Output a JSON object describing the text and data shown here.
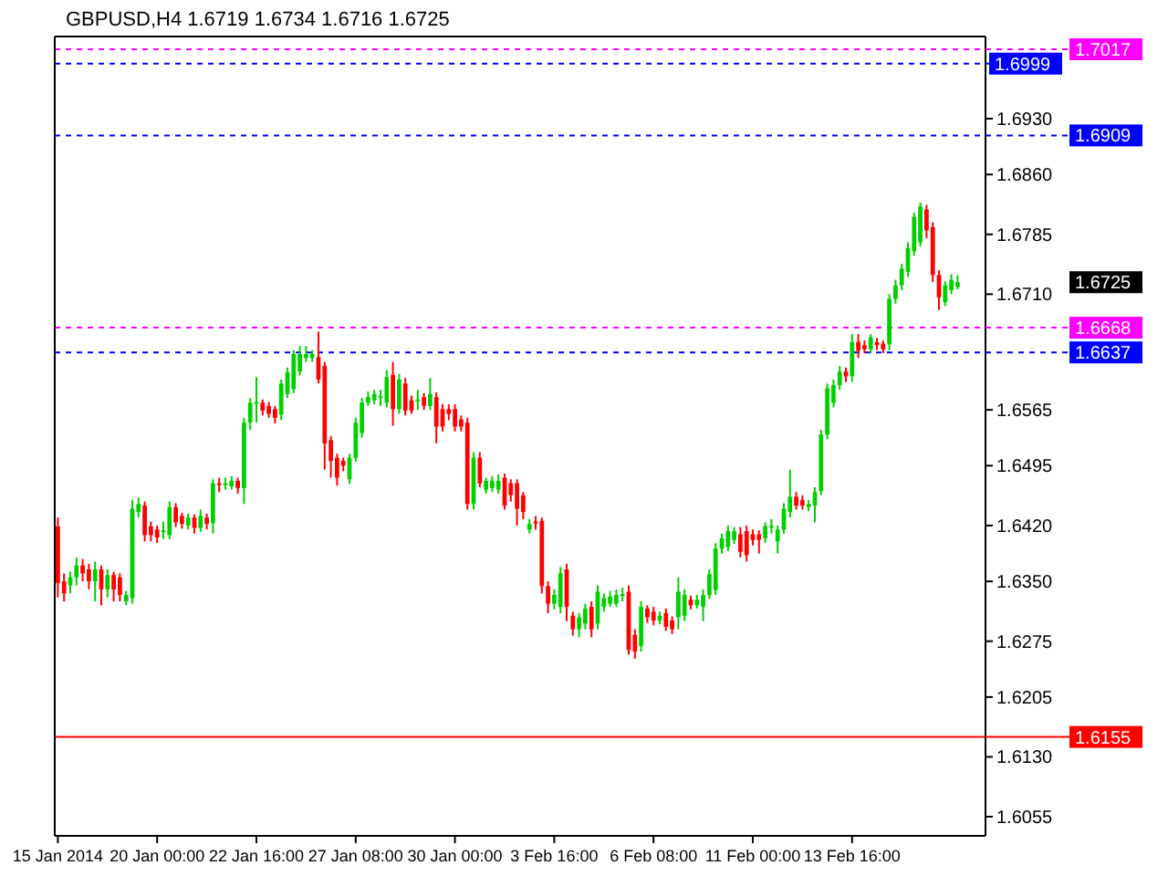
{
  "chart_data": {
    "type": "candlestick",
    "title": "GBPUSD,H4  1.6719 1.6734 1.6716 1.6725",
    "categories": [
      "15 Jan 2014",
      null,
      null,
      null,
      null,
      null,
      null,
      null,
      null,
      null,
      null,
      null,
      null,
      null,
      null,
      null,
      "20 Jan 00:00",
      null,
      null,
      null,
      null,
      null,
      null,
      null,
      null,
      null,
      null,
      null,
      null,
      null,
      null,
      null,
      "22 Jan 16:00",
      null,
      null,
      null,
      null,
      null,
      null,
      null,
      null,
      null,
      null,
      null,
      null,
      null,
      null,
      null,
      "27 Jan 08:00",
      null,
      null,
      null,
      null,
      null,
      null,
      null,
      null,
      null,
      null,
      null,
      null,
      null,
      null,
      null,
      "30 Jan 00:00",
      null,
      null,
      null,
      null,
      null,
      null,
      null,
      null,
      null,
      null,
      null,
      null,
      null,
      null,
      null,
      "3 Feb 16:00",
      null,
      null,
      null,
      null,
      null,
      null,
      null,
      null,
      null,
      null,
      null,
      null,
      null,
      null,
      null,
      "6 Feb 08:00",
      null,
      null,
      null,
      null,
      null,
      null,
      null,
      null,
      null,
      null,
      null,
      null,
      null,
      null,
      null,
      "11 Feb 00:00",
      null,
      null,
      null,
      null,
      null,
      null,
      null,
      null,
      null,
      null,
      null,
      null,
      null,
      null,
      null,
      "13 Feb 16:00",
      null,
      null,
      null,
      null,
      null,
      null,
      null,
      null,
      null,
      null,
      null,
      null,
      null,
      null,
      null,
      null,
      null
    ],
    "ohlc": [
      [
        1.6419,
        1.643,
        1.633,
        1.6348
      ],
      [
        1.635,
        1.636,
        1.6325,
        1.6335
      ],
      [
        1.6345,
        1.6362,
        1.6335,
        1.6355
      ],
      [
        1.6355,
        1.638,
        1.6345,
        1.637
      ],
      [
        1.637,
        1.6378,
        1.635,
        1.636
      ],
      [
        1.6365,
        1.6372,
        1.634,
        1.635
      ],
      [
        1.635,
        1.6375,
        1.6325,
        1.6365
      ],
      [
        1.6365,
        1.637,
        1.632,
        1.634
      ],
      [
        1.634,
        1.6365,
        1.633,
        1.6358
      ],
      [
        1.6358,
        1.6362,
        1.6325,
        1.634
      ],
      [
        1.6355,
        1.636,
        1.6325,
        1.6333
      ],
      [
        1.6325,
        1.6338,
        1.632,
        1.6333
      ],
      [
        1.6329,
        1.6452,
        1.6322,
        1.6441
      ],
      [
        1.6437,
        1.6455,
        1.643,
        1.6447
      ],
      [
        1.6445,
        1.645,
        1.64,
        1.6408
      ],
      [
        1.6419,
        1.6425,
        1.64,
        1.6408
      ],
      [
        1.6415,
        1.642,
        1.6398,
        1.6405
      ],
      [
        1.6413,
        1.6425,
        1.6403,
        1.6414
      ],
      [
        1.6408,
        1.645,
        1.6403,
        1.6443
      ],
      [
        1.6443,
        1.6448,
        1.6418,
        1.6424
      ],
      [
        1.6432,
        1.6436,
        1.6416,
        1.6422
      ],
      [
        1.642,
        1.6435,
        1.6415,
        1.643
      ],
      [
        1.643,
        1.6434,
        1.641,
        1.6417
      ],
      [
        1.6417,
        1.644,
        1.6412,
        1.6432
      ],
      [
        1.643,
        1.6435,
        1.6415,
        1.6422
      ],
      [
        1.6423,
        1.6478,
        1.641,
        1.6473
      ],
      [
        1.6473,
        1.648,
        1.6462,
        1.6472
      ],
      [
        1.6472,
        1.648,
        1.6465,
        1.6473
      ],
      [
        1.6469,
        1.6482,
        1.6465,
        1.6476
      ],
      [
        1.6476,
        1.648,
        1.646,
        1.6467
      ],
      [
        1.6467,
        1.6555,
        1.6447,
        1.6549
      ],
      [
        1.6549,
        1.658,
        1.654,
        1.6574
      ],
      [
        1.6574,
        1.6606,
        1.6549,
        1.6575
      ],
      [
        1.6574,
        1.6578,
        1.6558,
        1.6564
      ],
      [
        1.657,
        1.6575,
        1.6555,
        1.656
      ],
      [
        1.6566,
        1.657,
        1.6548,
        1.6555
      ],
      [
        1.6559,
        1.6603,
        1.6552,
        1.6598
      ],
      [
        1.6585,
        1.6618,
        1.658,
        1.6612
      ],
      [
        1.6591,
        1.664,
        1.6586,
        1.6635
      ],
      [
        1.6613,
        1.6645,
        1.6608,
        1.6635
      ],
      [
        1.663,
        1.6645,
        1.6625,
        1.6635
      ],
      [
        1.663,
        1.664,
        1.6625,
        1.6635
      ],
      [
        1.6631,
        1.6663,
        1.6598,
        1.6603
      ],
      [
        1.662,
        1.6625,
        1.649,
        1.6523
      ],
      [
        1.6527,
        1.6532,
        1.648,
        1.6501
      ],
      [
        1.6505,
        1.651,
        1.647,
        1.648
      ],
      [
        1.6501,
        1.6505,
        1.6488,
        1.6495
      ],
      [
        1.6478,
        1.651,
        1.6472,
        1.6505
      ],
      [
        1.6505,
        1.6555,
        1.65,
        1.6549
      ],
      [
        1.6536,
        1.658,
        1.653,
        1.6574
      ],
      [
        1.6574,
        1.6588,
        1.657,
        1.6581
      ],
      [
        1.6577,
        1.659,
        1.6572,
        1.6585
      ],
      [
        1.6581,
        1.659,
        1.657,
        1.6582
      ],
      [
        1.6574,
        1.6615,
        1.6568,
        1.6606
      ],
      [
        1.6609,
        1.6625,
        1.6545,
        1.6566
      ],
      [
        1.6566,
        1.661,
        1.656,
        1.6603
      ],
      [
        1.6598,
        1.6605,
        1.6558,
        1.6564
      ],
      [
        1.6577,
        1.6583,
        1.656,
        1.6564
      ],
      [
        1.6577,
        1.659,
        1.6565,
        1.6578
      ],
      [
        1.6581,
        1.6586,
        1.6565,
        1.657
      ],
      [
        1.657,
        1.6605,
        1.6565,
        1.6585
      ],
      [
        1.6581,
        1.6587,
        1.6523,
        1.6544
      ],
      [
        1.6566,
        1.6572,
        1.6538,
        1.6544
      ],
      [
        1.6566,
        1.6572,
        1.6552,
        1.656
      ],
      [
        1.6566,
        1.6572,
        1.6538,
        1.6544
      ],
      [
        1.6553,
        1.6558,
        1.6538,
        1.6544
      ],
      [
        1.6549,
        1.6555,
        1.644,
        1.6447
      ],
      [
        1.6447,
        1.6512,
        1.644,
        1.6505
      ],
      [
        1.6505,
        1.6512,
        1.6468,
        1.6473
      ],
      [
        1.6465,
        1.648,
        1.646,
        1.6476
      ],
      [
        1.6467,
        1.6482,
        1.6462,
        1.6476
      ],
      [
        1.6465,
        1.6484,
        1.646,
        1.6476
      ],
      [
        1.648,
        1.6485,
        1.644,
        1.6445
      ],
      [
        1.6473,
        1.6478,
        1.645,
        1.6458
      ],
      [
        1.6473,
        1.6478,
        1.642,
        1.6441
      ],
      [
        1.6458,
        1.6462,
        1.6428,
        1.6437
      ],
      [
        1.6415,
        1.6428,
        1.641,
        1.6422
      ],
      [
        1.6425,
        1.6432,
        1.6415,
        1.6424
      ],
      [
        1.6426,
        1.643,
        1.6335,
        1.6344
      ],
      [
        1.6344,
        1.635,
        1.631,
        1.6322
      ],
      [
        1.6322,
        1.634,
        1.6315,
        1.6333
      ],
      [
        1.6318,
        1.6368,
        1.631,
        1.636
      ],
      [
        1.6365,
        1.6372,
        1.63,
        1.6318
      ],
      [
        1.6307,
        1.6312,
        1.6282,
        1.629
      ],
      [
        1.629,
        1.631,
        1.628,
        1.6305
      ],
      [
        1.6297,
        1.6322,
        1.629,
        1.6316
      ],
      [
        1.6318,
        1.6325,
        1.628,
        1.629
      ],
      [
        1.6297,
        1.6345,
        1.629,
        1.6337
      ],
      [
        1.6318,
        1.6335,
        1.6312,
        1.6329
      ],
      [
        1.6322,
        1.6338,
        1.6318,
        1.6331
      ],
      [
        1.6322,
        1.634,
        1.6318,
        1.6333
      ],
      [
        1.6333,
        1.6342,
        1.6325,
        1.6334
      ],
      [
        1.6337,
        1.6345,
        1.6258,
        1.6264
      ],
      [
        1.6283,
        1.629,
        1.6253,
        1.6262
      ],
      [
        1.6269,
        1.6325,
        1.6262,
        1.6318
      ],
      [
        1.6316,
        1.632,
        1.6298,
        1.6305
      ],
      [
        1.6312,
        1.6318,
        1.6295,
        1.6301
      ],
      [
        1.6301,
        1.6312,
        1.6296,
        1.6307
      ],
      [
        1.631,
        1.6316,
        1.6288,
        1.6293
      ],
      [
        1.6301,
        1.6306,
        1.6284,
        1.629
      ],
      [
        1.6305,
        1.6355,
        1.629,
        1.6337
      ],
      [
        1.6307,
        1.634,
        1.63,
        1.6333
      ],
      [
        1.6327,
        1.6332,
        1.6315,
        1.632
      ],
      [
        1.632,
        1.6333,
        1.6316,
        1.6327
      ],
      [
        1.6318,
        1.634,
        1.63,
        1.6333
      ],
      [
        1.6333,
        1.6365,
        1.6328,
        1.6359
      ],
      [
        1.6339,
        1.6398,
        1.6333,
        1.6391
      ],
      [
        1.6391,
        1.641,
        1.6385,
        1.6404
      ],
      [
        1.6393,
        1.642,
        1.6388,
        1.6413
      ],
      [
        1.6402,
        1.6418,
        1.6397,
        1.6413
      ],
      [
        1.6409,
        1.6418,
        1.638,
        1.6387
      ],
      [
        1.6413,
        1.642,
        1.6375,
        1.6383
      ],
      [
        1.6409,
        1.6415,
        1.6395,
        1.6402
      ],
      [
        1.6409,
        1.6414,
        1.6385,
        1.6402
      ],
      [
        1.6404,
        1.6424,
        1.6398,
        1.6419
      ],
      [
        1.6419,
        1.6428,
        1.641,
        1.642
      ],
      [
        1.64,
        1.642,
        1.6385,
        1.6415
      ],
      [
        1.6415,
        1.6448,
        1.641,
        1.6441
      ],
      [
        1.6437,
        1.649,
        1.643,
        1.6456
      ],
      [
        1.6456,
        1.6462,
        1.644,
        1.6445
      ],
      [
        1.6452,
        1.6458,
        1.644,
        1.6445
      ],
      [
        1.6443,
        1.6452,
        1.6438,
        1.6447
      ],
      [
        1.6445,
        1.6468,
        1.6424,
        1.6462
      ],
      [
        1.6463,
        1.654,
        1.6458,
        1.6534
      ],
      [
        1.6534,
        1.6598,
        1.6528,
        1.6592
      ],
      [
        1.6574,
        1.6603,
        1.6568,
        1.6596
      ],
      [
        1.6596,
        1.662,
        1.659,
        1.6613
      ],
      [
        1.6613,
        1.6618,
        1.66,
        1.6607
      ],
      [
        1.6607,
        1.666,
        1.66,
        1.665
      ],
      [
        1.665,
        1.666,
        1.663,
        1.6639
      ],
      [
        1.6646,
        1.6652,
        1.6636,
        1.6641
      ],
      [
        1.6641,
        1.666,
        1.6636,
        1.6656
      ],
      [
        1.665,
        1.6655,
        1.664,
        1.6646
      ],
      [
        1.6648,
        1.6652,
        1.6636,
        1.6641
      ],
      [
        1.6647,
        1.671,
        1.664,
        1.6704
      ],
      [
        1.6704,
        1.6728,
        1.6698,
        1.6721
      ],
      [
        1.6721,
        1.6748,
        1.6715,
        1.6742
      ],
      [
        1.6738,
        1.6775,
        1.6732,
        1.6768
      ],
      [
        1.6764,
        1.6812,
        1.6758,
        1.6807
      ],
      [
        1.6775,
        1.6825,
        1.677,
        1.682
      ],
      [
        1.6816,
        1.6822,
        1.678,
        1.679
      ],
      [
        1.6794,
        1.68,
        1.6725,
        1.6734
      ],
      [
        1.6734,
        1.674,
        1.669,
        1.6706
      ],
      [
        1.67,
        1.6726,
        1.6695,
        1.6721
      ],
      [
        1.6715,
        1.6735,
        1.671,
        1.6728
      ],
      [
        1.6719,
        1.6734,
        1.6716,
        1.6725
      ]
    ],
    "ylim": [
      1.6031,
      1.7033
    ],
    "annotations": [
      "1.6725"
    ],
    "yticks": [
      1.6055,
      {
        "value": 1.613,
        "label": "1.6130"
      },
      1.6205,
      1.6275,
      {
        "value": 1.635,
        "label": "1.6350"
      },
      {
        "value": 1.642,
        "label": "1.6420"
      },
      1.6495,
      1.6565,
      {
        "value": 1.671,
        "label": "1.6710"
      },
      1.6785,
      {
        "value": 1.686,
        "label": "1.6860"
      },
      {
        "value": 1.693,
        "label": "1.6930"
      }
    ],
    "ref_lines": [
      {
        "axis": "y",
        "value": 1.7017,
        "label": "1.7017",
        "color": "#ff00ff",
        "line_style": "dashed"
      },
      {
        "axis": "y",
        "value": 1.6999,
        "label": "1.6999",
        "color": "#0000ff",
        "line_style": "dashed"
      },
      {
        "axis": "y",
        "value": 1.6909,
        "label": "1.6909",
        "color": "#0000ff",
        "line_style": "dashed"
      },
      {
        "axis": "y",
        "value": 1.6668,
        "label": "1.6668",
        "color": "#ff00ff",
        "line_style": "dashed"
      },
      {
        "axis": "y",
        "value": 1.6637,
        "label": "1.6637",
        "color": "#0000ff",
        "line_style": "dashed"
      },
      {
        "axis": "y",
        "value": 1.6155,
        "label": "1.6155",
        "color": "#ff0000",
        "line_style": "solid"
      }
    ]
  }
}
